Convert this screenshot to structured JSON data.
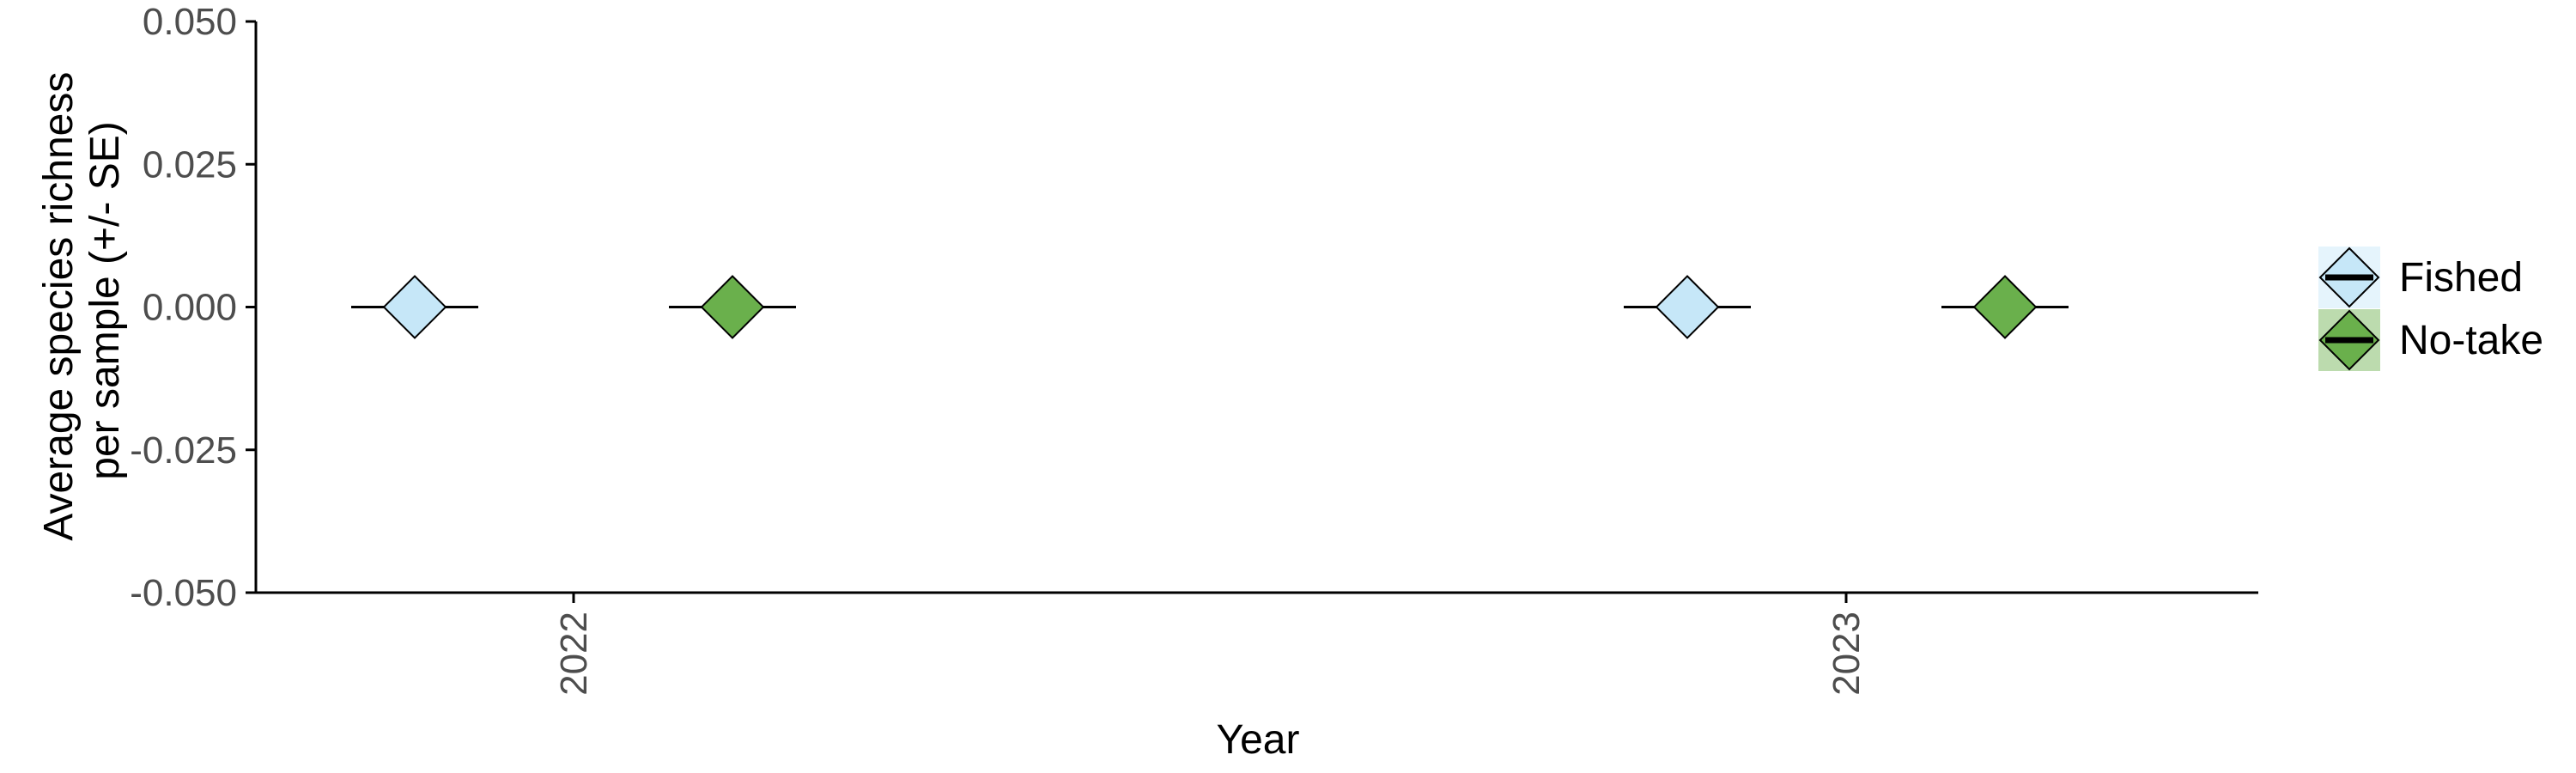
{
  "chart_data": {
    "type": "scatter",
    "xlabel": "Year",
    "ylabel_lines": [
      "Average species richness",
      "per sample (+/- SE)"
    ],
    "categories": [
      "2022",
      "2023"
    ],
    "ylim": [
      -0.05,
      0.05
    ],
    "yticks": [
      0.05,
      0.025,
      0.0,
      -0.025,
      -0.05
    ],
    "ytick_labels": [
      "0.050",
      "0.025",
      "0.000",
      "-0.025",
      "-0.050"
    ],
    "grid": false,
    "legend_position": "right",
    "series": [
      {
        "name": "Fished",
        "color": "#c6e7f8",
        "values": [
          0.0,
          0.0
        ],
        "se": [
          0.0,
          0.0
        ]
      },
      {
        "name": "No-take",
        "color": "#6ab04c",
        "values": [
          0.0,
          0.0
        ],
        "se": [
          0.0,
          0.0
        ]
      }
    ]
  }
}
